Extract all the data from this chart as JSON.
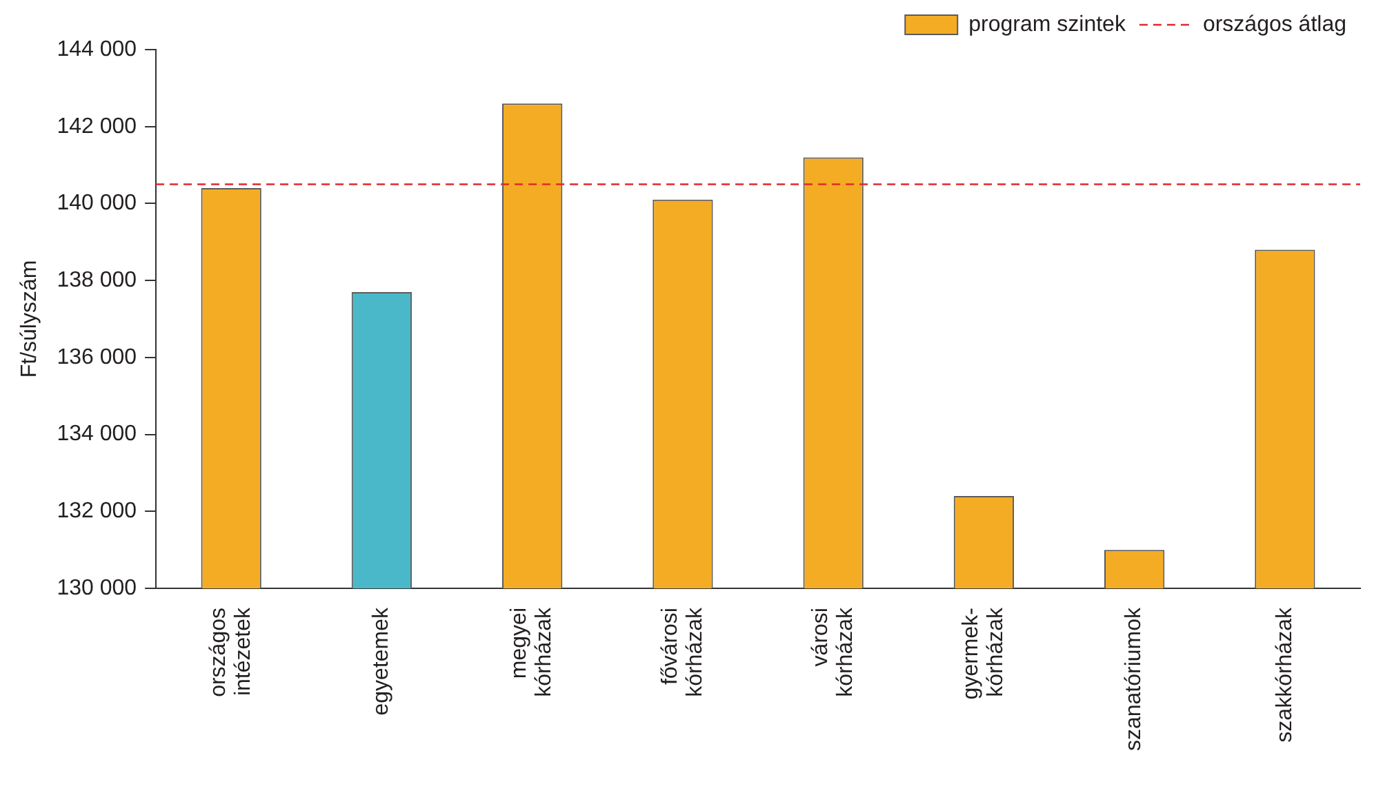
{
  "chart_data": {
    "type": "bar",
    "ylabel": "Ft/súlyszám",
    "categories": [
      "országos intézetek",
      "egyetemek",
      "megyei kórházak",
      "fővárosi kórházak",
      "városi kórházak",
      "gyermek-kórházak",
      "szanatóriumok",
      "szakkórházak"
    ],
    "series": [
      {
        "name": "program szintek",
        "color": "#f5ac25",
        "colors": [
          "#f5ac25",
          "#4bb8c9",
          "#f5ac25",
          "#f5ac25",
          "#f5ac25",
          "#f5ac25",
          "#f5ac25",
          "#f5ac25"
        ],
        "values": [
          140400,
          137700,
          142600,
          140100,
          141200,
          132400,
          131000,
          138800
        ]
      }
    ],
    "ylim": [
      130000,
      144000
    ],
    "yticks": [
      {
        "value": 130000,
        "label": "130 000"
      },
      {
        "value": 132000,
        "label": "132 000"
      },
      {
        "value": 134000,
        "label": "134 000"
      },
      {
        "value": 136000,
        "label": "136 000"
      },
      {
        "value": 138000,
        "label": "138 000"
      },
      {
        "value": 140000,
        "label": "140 000"
      },
      {
        "value": 142000,
        "label": "142 000"
      },
      {
        "value": 144000,
        "label": "144 000"
      }
    ],
    "ref_lines": [
      {
        "axis": "y",
        "value": 140500,
        "label": "országos átlag",
        "color": "#e0282e",
        "line_style": "dashed"
      }
    ],
    "grid": false,
    "legend": "top right"
  }
}
